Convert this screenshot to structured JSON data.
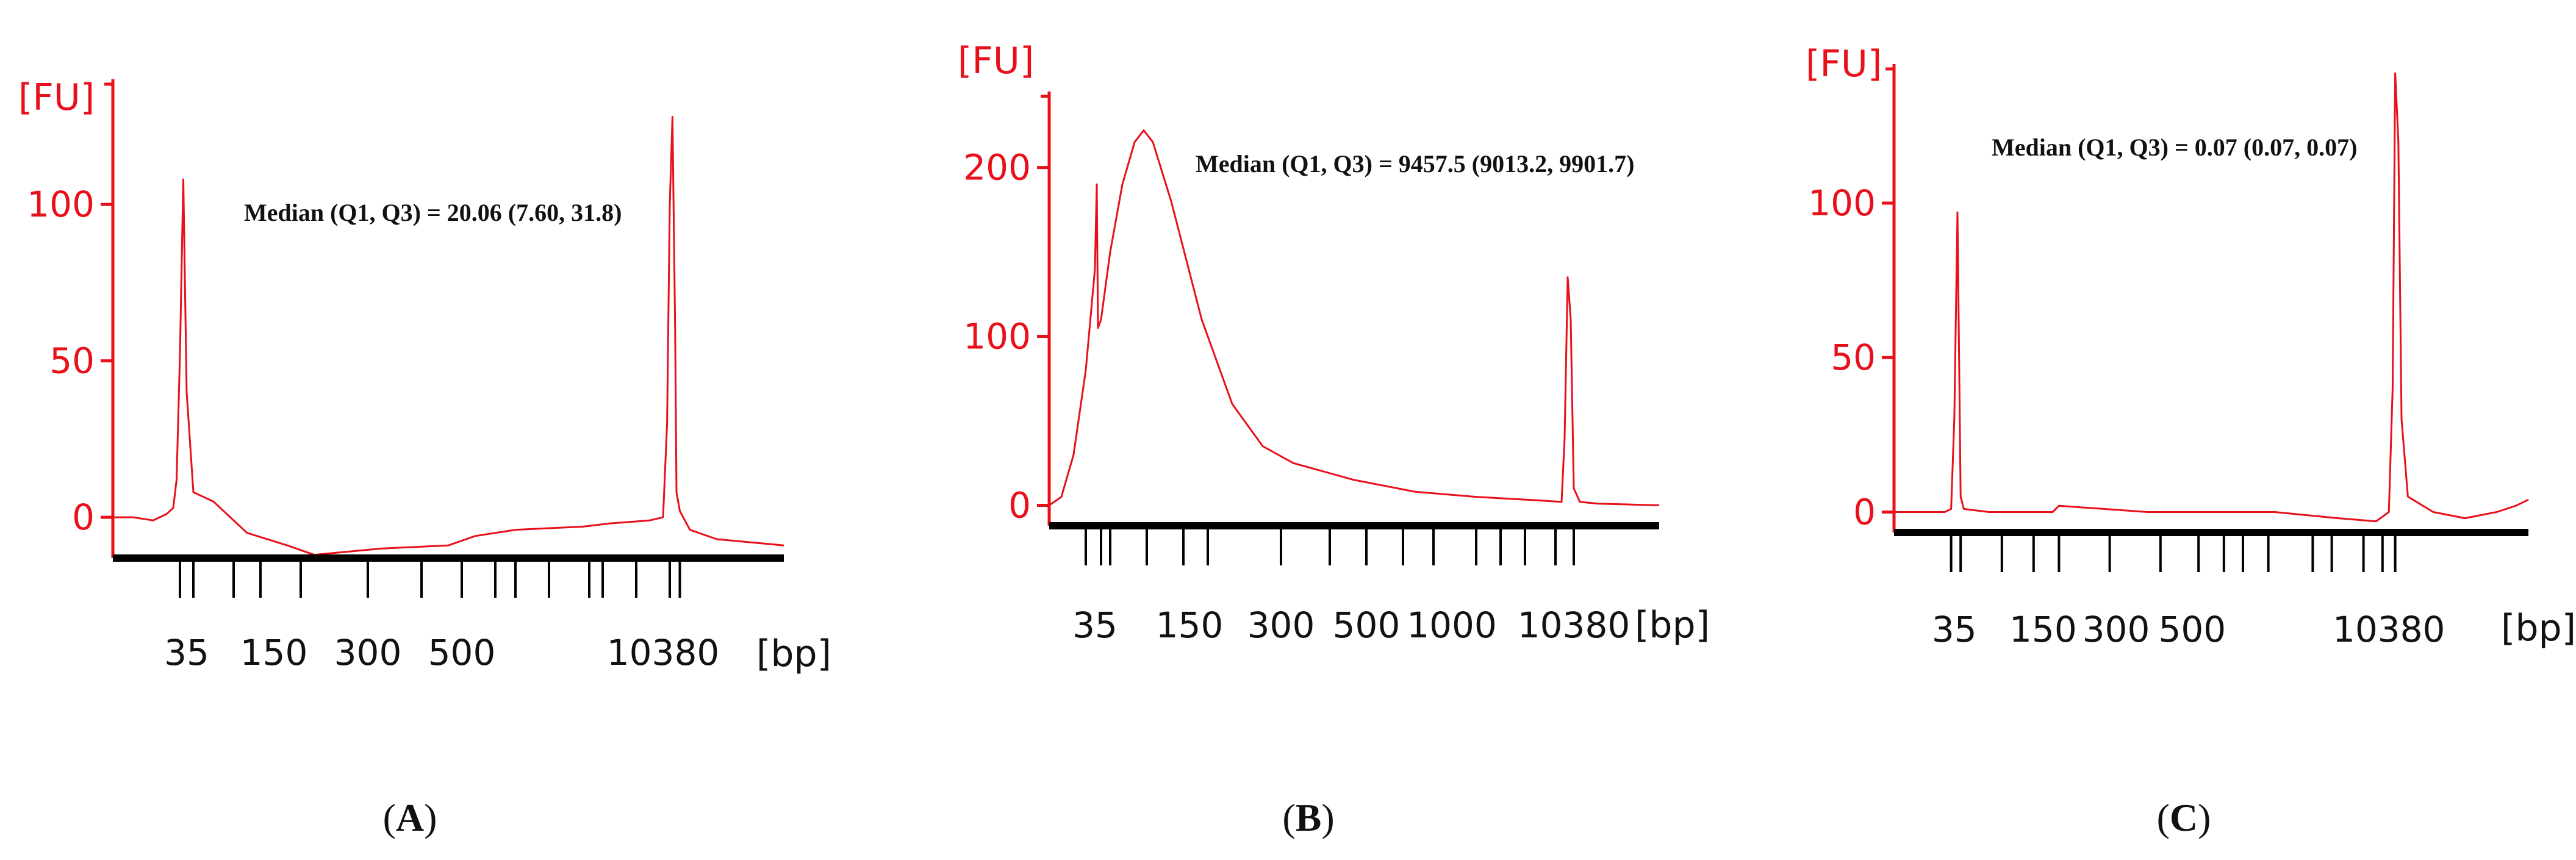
{
  "colors": {
    "trace": "#e8101a",
    "axis_red": "#e8101a",
    "axis_black": "#000000",
    "text": "#111111"
  },
  "chart_data": [
    {
      "panel": "A",
      "type": "line",
      "y_unit_label": "[FU]",
      "x_unit_label": "[bp]",
      "y_ticks": [
        0,
        50,
        100
      ],
      "ylim": [
        -15,
        140
      ],
      "annotation": "Median (Q1, Q3) = 20.06 (7.60, 31.8)",
      "x_tick_labels": [
        "35",
        "150",
        "300",
        "500",
        "10380"
      ],
      "series": [
        {
          "name": "FU",
          "x": [
            0.0,
            0.03,
            0.06,
            0.08,
            0.09,
            0.095,
            0.1,
            0.105,
            0.11,
            0.12,
            0.15,
            0.2,
            0.26,
            0.3,
            0.4,
            0.5,
            0.54,
            0.6,
            0.7,
            0.74,
            0.8,
            0.82,
            0.826,
            0.83,
            0.834,
            0.838,
            0.84,
            0.845,
            0.86,
            0.9,
            0.95,
            1.0
          ],
          "y": [
            0,
            0,
            -1,
            1,
            3,
            12,
            52,
            108,
            40,
            8,
            5,
            -5,
            -9,
            -12,
            -10,
            -9,
            -6,
            -4,
            -3,
            -2,
            -1,
            0,
            30,
            100,
            128,
            60,
            8,
            2,
            -4,
            -7,
            -8,
            -9
          ]
        }
      ]
    },
    {
      "panel": "B",
      "type": "line",
      "y_unit_label": "[FU]",
      "x_unit_label": "[bp]",
      "y_ticks": [
        0,
        100,
        200
      ],
      "ylim": [
        -15,
        245
      ],
      "annotation": "Median (Q1, Q3) = 9457.5 (9013.2, 9901.7)",
      "x_tick_labels": [
        "35",
        "150",
        "300",
        "500",
        "1000",
        "10380"
      ],
      "series": [
        {
          "name": "FU",
          "x": [
            0.0,
            0.02,
            0.04,
            0.06,
            0.075,
            0.078,
            0.08,
            0.085,
            0.1,
            0.12,
            0.14,
            0.155,
            0.17,
            0.2,
            0.25,
            0.3,
            0.35,
            0.4,
            0.5,
            0.6,
            0.7,
            0.8,
            0.84,
            0.845,
            0.85,
            0.855,
            0.86,
            0.87,
            0.9,
            1.0
          ],
          "y": [
            0,
            5,
            30,
            80,
            140,
            190,
            105,
            110,
            150,
            190,
            215,
            222,
            215,
            180,
            110,
            60,
            35,
            25,
            15,
            8,
            5,
            3,
            2,
            40,
            135,
            110,
            10,
            2,
            1,
            0
          ]
        }
      ]
    },
    {
      "panel": "C",
      "type": "line",
      "y_unit_label": "[FU]",
      "x_unit_label": "[bp]",
      "y_ticks": [
        0,
        50,
        100
      ],
      "ylim": [
        -8,
        145
      ],
      "annotation": "Median (Q1, Q3) = 0.07 (0.07, 0.07)",
      "x_tick_labels": [
        "35",
        "150",
        "300",
        "500",
        "10380"
      ],
      "series": [
        {
          "name": "FU",
          "x": [
            0.0,
            0.05,
            0.08,
            0.09,
            0.095,
            0.1,
            0.105,
            0.11,
            0.15,
            0.25,
            0.26,
            0.4,
            0.6,
            0.7,
            0.76,
            0.78,
            0.786,
            0.79,
            0.795,
            0.8,
            0.81,
            0.85,
            0.9,
            0.95,
            0.98,
            1.0
          ],
          "y": [
            0,
            0,
            0,
            1,
            30,
            97,
            5,
            1,
            0,
            0,
            2,
            0,
            0,
            -2,
            -3,
            0,
            40,
            142,
            120,
            30,
            5,
            0,
            -2,
            0,
            2,
            4
          ]
        }
      ]
    }
  ],
  "panel_labels": [
    "A",
    "B",
    "C"
  ]
}
